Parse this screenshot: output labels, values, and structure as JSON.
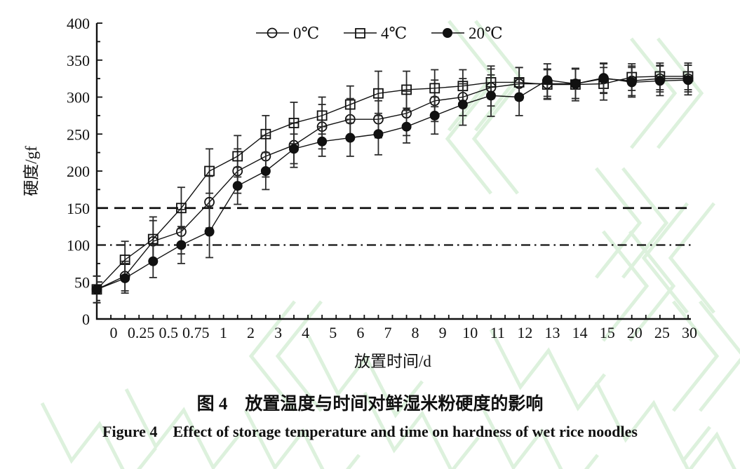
{
  "figure": {
    "caption_zh": "图 4　放置温度与时间对鲜湿米粉硬度的影响",
    "caption_en": "Figure 4　Effect of storage temperature and time on hardness of wet rice noodles"
  },
  "chart_data": {
    "type": "line",
    "title": "",
    "xlabel": "放置时间/d",
    "ylabel": "硬度/gf",
    "ylim": [
      0,
      400
    ],
    "ytick_major": 50,
    "ytick_minor": 25,
    "grid": false,
    "error_bars": true,
    "legend_position": "top-center",
    "categories": [
      "0",
      "0.25",
      "0.5",
      "0.75",
      "1",
      "2",
      "3",
      "4",
      "5",
      "6",
      "7",
      "8",
      "9",
      "10",
      "11",
      "12",
      "13",
      "14",
      "15",
      "20",
      "25",
      "30"
    ],
    "series": [
      {
        "name": "0℃",
        "marker": "circle-open",
        "color": "#111111",
        "values": [
          40,
          58,
          105,
          118,
          158,
          200,
          220,
          235,
          260,
          270,
          270,
          278,
          295,
          300,
          313,
          318,
          318,
          318,
          325,
          322,
          325,
          325
        ],
        "errors": [
          18,
          20,
          28,
          30,
          35,
          30,
          28,
          30,
          30,
          28,
          25,
          30,
          28,
          25,
          25,
          22,
          20,
          20,
          20,
          20,
          18,
          18
        ]
      },
      {
        "name": "4℃",
        "marker": "square-open",
        "color": "#111111",
        "values": [
          40,
          80,
          108,
          150,
          200,
          220,
          250,
          265,
          275,
          290,
          305,
          310,
          312,
          315,
          320,
          320,
          317,
          317,
          318,
          327,
          328,
          328
        ],
        "errors": [
          18,
          25,
          30,
          28,
          30,
          28,
          25,
          28,
          25,
          25,
          30,
          25,
          25,
          22,
          22,
          20,
          20,
          22,
          22,
          18,
          18,
          18
        ]
      },
      {
        "name": "20℃",
        "marker": "circle-filled",
        "color": "#111111",
        "values": [
          40,
          55,
          78,
          100,
          118,
          180,
          200,
          230,
          240,
          245,
          250,
          260,
          275,
          290,
          302,
          300,
          323,
          318,
          326,
          320,
          322,
          323
        ],
        "errors": [
          18,
          20,
          22,
          25,
          35,
          25,
          25,
          20,
          20,
          25,
          28,
          22,
          25,
          28,
          28,
          25,
          22,
          20,
          20,
          20,
          20,
          20
        ]
      }
    ],
    "reference_lines": [
      {
        "value": 150,
        "style": "dashed"
      },
      {
        "value": 100,
        "style": "dash-dot"
      }
    ]
  },
  "watermark_color": "#ddf1dd"
}
